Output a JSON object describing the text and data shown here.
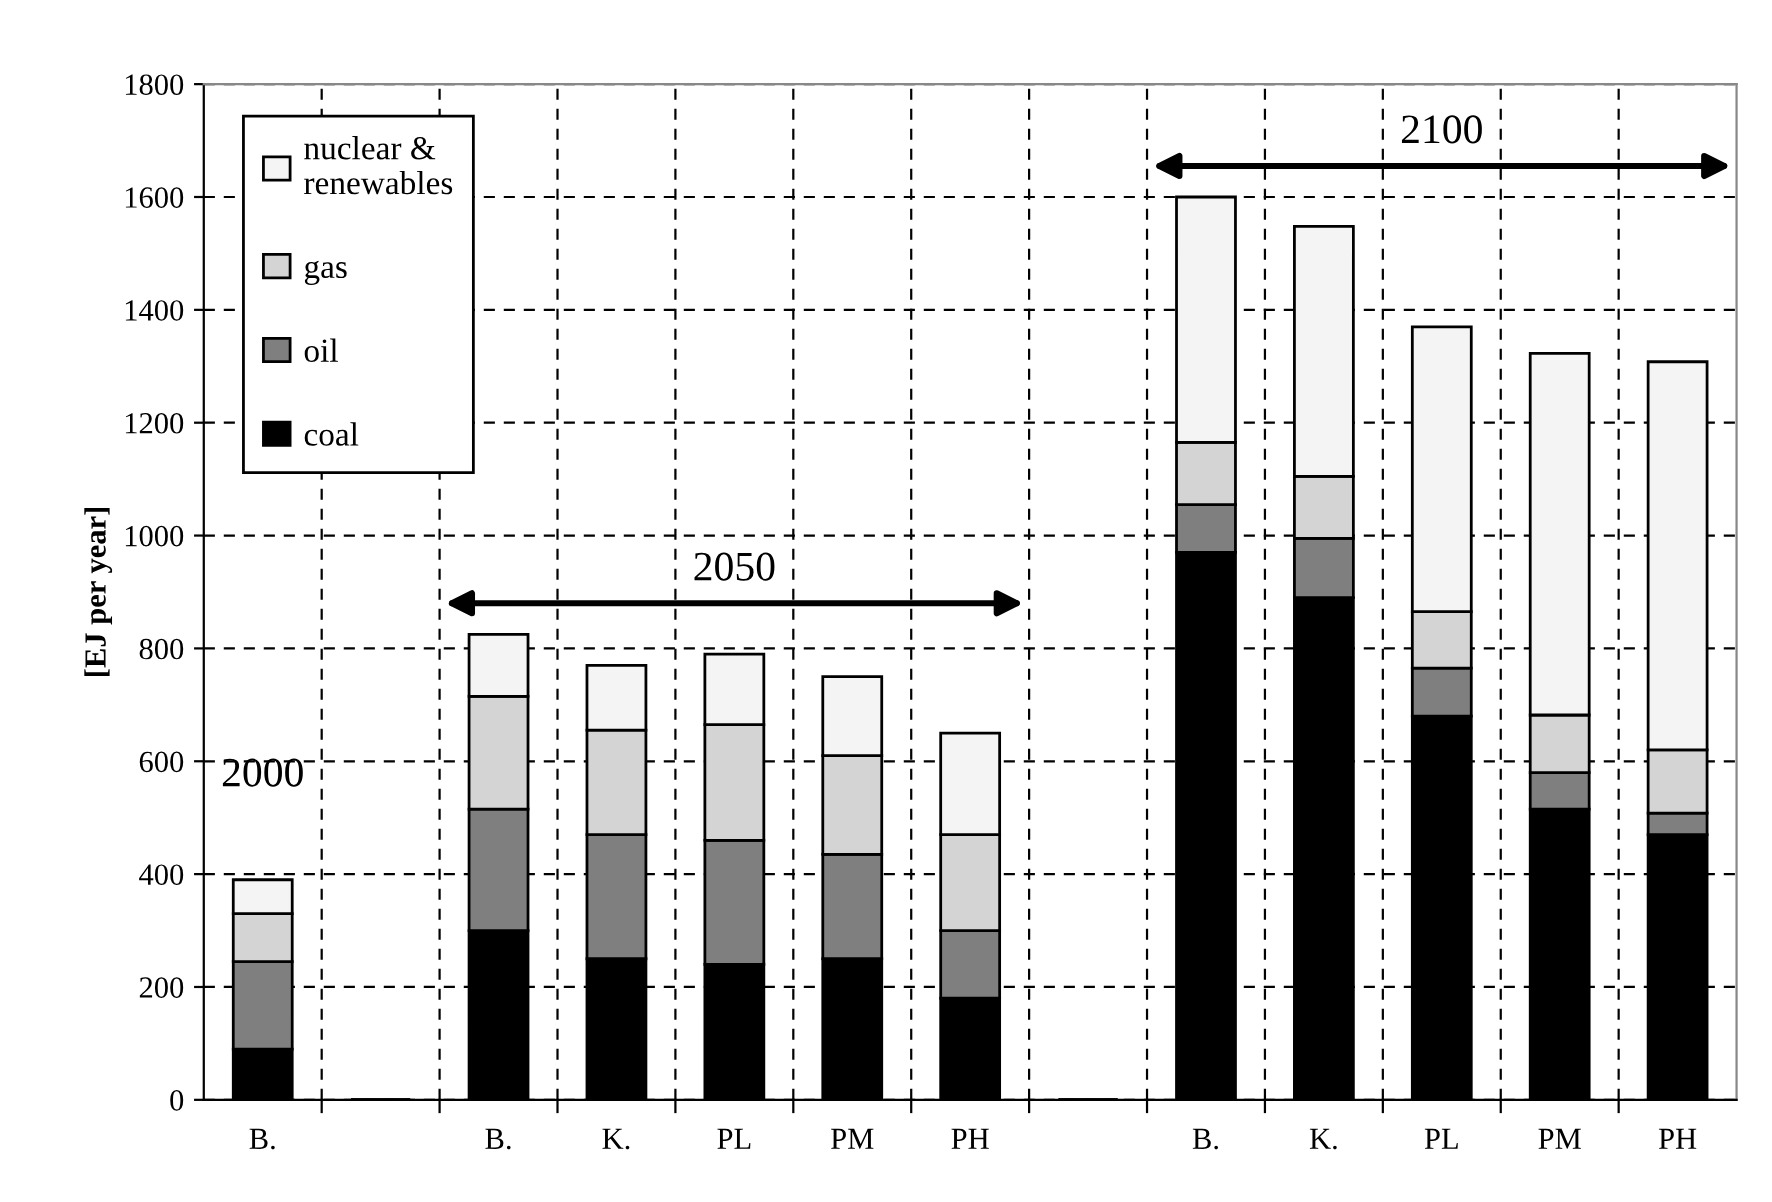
{
  "chart_data": {
    "type": "bar",
    "stacked": true,
    "ylabel": "[EJ per year]",
    "categories": [
      "B.",
      null,
      "B.",
      "K.",
      "PL",
      "PM",
      "PH",
      null,
      "B.",
      "K.",
      "PL",
      "PM",
      "PH"
    ],
    "series": [
      {
        "name": "coal",
        "color": "#000000",
        "values": [
          90,
          null,
          300,
          250,
          240,
          250,
          180,
          null,
          970,
          890,
          680,
          515,
          470
        ]
      },
      {
        "name": "oil",
        "color": "#7f7f7f",
        "values": [
          155,
          null,
          215,
          220,
          220,
          185,
          120,
          null,
          85,
          105,
          85,
          65,
          38
        ]
      },
      {
        "name": "gas",
        "color": "#d4d4d4",
        "values": [
          85,
          null,
          200,
          185,
          205,
          175,
          170,
          null,
          110,
          110,
          100,
          102,
          112
        ]
      },
      {
        "name": "nuclear & renewables",
        "color": "#f4f4f4",
        "values": [
          60,
          null,
          110,
          115,
          125,
          140,
          180,
          null,
          435,
          443,
          505,
          641,
          688
        ]
      }
    ],
    "ylim": [
      0,
      1800
    ],
    "yticks": [
      0,
      200,
      400,
      600,
      800,
      1000,
      1200,
      1400,
      1600,
      1800
    ],
    "grid": true,
    "legend": "top left",
    "annotations": [
      "2000",
      "2050",
      "2100"
    ]
  }
}
